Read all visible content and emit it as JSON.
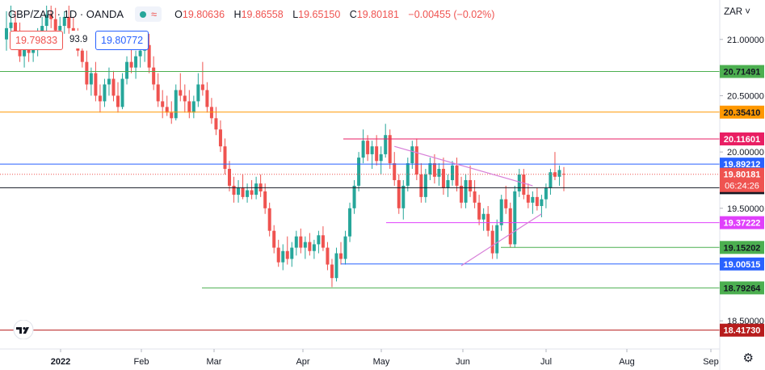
{
  "header": {
    "symbol": "GBP/ZAR · 1D · OANDA",
    "open_label": "O",
    "open": "19.80636",
    "high_label": "H",
    "high": "19.86558",
    "low_label": "L",
    "low": "19.65150",
    "close_label": "C",
    "close": "19.80181",
    "change": "−0.00455 (−0.02%)"
  },
  "trade": {
    "sell": "19.79833",
    "spread": "93.9",
    "buy": "19.80772"
  },
  "currency": "ZAR",
  "colors": {
    "up": "#26a69a",
    "down": "#ef5350"
  },
  "icons": {
    "settings": "gear-icon",
    "logo": "tradingview-logo-icon",
    "menu": "chevron-down-icon"
  },
  "chart_data": {
    "type": "candlestick",
    "title": "",
    "xlabel": "",
    "ylabel": "",
    "ylim": [
      18.25,
      21.35
    ],
    "x_ticks": [
      "2022",
      "Feb",
      "Mar",
      "Apr",
      "May",
      "Jun",
      "Jul",
      "Aug",
      "Sep"
    ],
    "y_ticks": [
      "21.00000",
      "20.50000",
      "20.00000",
      "19.50000",
      "18.50000"
    ],
    "grid": false,
    "levels": [
      {
        "value": 20.71491,
        "label": "20.71491",
        "color": "#4caf50"
      },
      {
        "value": 20.3541,
        "label": "20.35410",
        "color": "#ff9800"
      },
      {
        "value": 20.11601,
        "label": "20.11601",
        "color": "#e91e63"
      },
      {
        "value": 19.89212,
        "label": "19.89212",
        "color": "#2962ff"
      },
      {
        "value": 19.68257,
        "label": "19.68257",
        "color": "#131722"
      },
      {
        "value": 19.37222,
        "label": "19.37222",
        "color": "#e040fb"
      },
      {
        "value": 19.15202,
        "label": "19.15202",
        "color": "#4caf50"
      },
      {
        "value": 19.00515,
        "label": "19.00515",
        "color": "#2962ff"
      },
      {
        "value": 18.79264,
        "label": "18.79264",
        "color": "#4caf50"
      },
      {
        "value": 18.4173,
        "label": "18.41730",
        "color": "#b71c1c"
      }
    ],
    "current_price": {
      "value": 19.80181,
      "label": "19.80181",
      "countdown": "06:24:26"
    },
    "candles": [
      {
        "o": 21.0,
        "h": 21.25,
        "l": 20.9,
        "c": 21.1
      },
      {
        "o": 21.1,
        "h": 21.3,
        "l": 21.0,
        "c": 21.15
      },
      {
        "o": 21.15,
        "h": 21.25,
        "l": 20.95,
        "c": 21.05
      },
      {
        "o": 21.05,
        "h": 21.15,
        "l": 20.8,
        "c": 20.85
      },
      {
        "o": 20.85,
        "h": 21.0,
        "l": 20.75,
        "c": 20.95
      },
      {
        "o": 20.95,
        "h": 21.05,
        "l": 20.8,
        "c": 20.88
      },
      {
        "o": 20.88,
        "h": 21.0,
        "l": 20.8,
        "c": 20.92
      },
      {
        "o": 20.92,
        "h": 21.1,
        "l": 20.85,
        "c": 21.02
      },
      {
        "o": 21.02,
        "h": 21.2,
        "l": 20.95,
        "c": 21.12
      },
      {
        "o": 21.12,
        "h": 21.3,
        "l": 21.05,
        "c": 21.22
      },
      {
        "o": 21.22,
        "h": 21.3,
        "l": 21.1,
        "c": 21.18
      },
      {
        "o": 21.18,
        "h": 21.28,
        "l": 21.05,
        "c": 21.08
      },
      {
        "o": 21.08,
        "h": 21.2,
        "l": 21.0,
        "c": 21.12
      },
      {
        "o": 21.12,
        "h": 21.25,
        "l": 21.05,
        "c": 21.2
      },
      {
        "o": 21.2,
        "h": 21.3,
        "l": 21.05,
        "c": 21.1
      },
      {
        "o": 21.1,
        "h": 21.2,
        "l": 20.95,
        "c": 21.0
      },
      {
        "o": 21.0,
        "h": 21.1,
        "l": 20.85,
        "c": 20.9
      },
      {
        "o": 20.9,
        "h": 21.0,
        "l": 20.75,
        "c": 20.8
      },
      {
        "o": 20.8,
        "h": 20.9,
        "l": 20.55,
        "c": 20.6
      },
      {
        "o": 20.6,
        "h": 20.75,
        "l": 20.5,
        "c": 20.7
      },
      {
        "o": 20.7,
        "h": 20.8,
        "l": 20.45,
        "c": 20.5
      },
      {
        "o": 20.5,
        "h": 20.6,
        "l": 20.35,
        "c": 20.45
      },
      {
        "o": 20.45,
        "h": 20.65,
        "l": 20.4,
        "c": 20.6
      },
      {
        "o": 20.6,
        "h": 20.75,
        "l": 20.5,
        "c": 20.65
      },
      {
        "o": 20.65,
        "h": 20.72,
        "l": 20.45,
        "c": 20.5
      },
      {
        "o": 20.5,
        "h": 20.62,
        "l": 20.35,
        "c": 20.4
      },
      {
        "o": 20.4,
        "h": 20.7,
        "l": 20.38,
        "c": 20.65
      },
      {
        "o": 20.65,
        "h": 20.85,
        "l": 20.6,
        "c": 20.8
      },
      {
        "o": 20.8,
        "h": 20.95,
        "l": 20.7,
        "c": 20.75
      },
      {
        "o": 20.75,
        "h": 20.9,
        "l": 20.65,
        "c": 20.85
      },
      {
        "o": 20.85,
        "h": 21.0,
        "l": 20.75,
        "c": 20.9
      },
      {
        "o": 20.9,
        "h": 21.05,
        "l": 20.8,
        "c": 20.95
      },
      {
        "o": 20.95,
        "h": 21.05,
        "l": 20.7,
        "c": 20.75
      },
      {
        "o": 20.75,
        "h": 20.85,
        "l": 20.55,
        "c": 20.6
      },
      {
        "o": 20.6,
        "h": 20.7,
        "l": 20.4,
        "c": 20.45
      },
      {
        "o": 20.45,
        "h": 20.55,
        "l": 20.3,
        "c": 20.4
      },
      {
        "o": 20.4,
        "h": 20.5,
        "l": 20.32,
        "c": 20.35
      },
      {
        "o": 20.35,
        "h": 20.45,
        "l": 20.25,
        "c": 20.3
      },
      {
        "o": 20.3,
        "h": 20.6,
        "l": 20.28,
        "c": 20.55
      },
      {
        "o": 20.55,
        "h": 20.7,
        "l": 20.45,
        "c": 20.5
      },
      {
        "o": 20.5,
        "h": 20.6,
        "l": 20.35,
        "c": 20.45
      },
      {
        "o": 20.45,
        "h": 20.55,
        "l": 20.3,
        "c": 20.35
      },
      {
        "o": 20.35,
        "h": 20.5,
        "l": 20.3,
        "c": 20.45
      },
      {
        "o": 20.45,
        "h": 20.7,
        "l": 20.4,
        "c": 20.6
      },
      {
        "o": 20.6,
        "h": 20.8,
        "l": 20.5,
        "c": 20.55
      },
      {
        "o": 20.55,
        "h": 20.62,
        "l": 20.35,
        "c": 20.4
      },
      {
        "o": 20.4,
        "h": 20.48,
        "l": 20.25,
        "c": 20.3
      },
      {
        "o": 20.3,
        "h": 20.4,
        "l": 20.15,
        "c": 20.2
      },
      {
        "o": 20.2,
        "h": 20.28,
        "l": 20.0,
        "c": 20.05
      },
      {
        "o": 20.05,
        "h": 20.12,
        "l": 19.8,
        "c": 19.85
      },
      {
        "o": 19.85,
        "h": 19.92,
        "l": 19.65,
        "c": 19.7
      },
      {
        "o": 19.7,
        "h": 19.78,
        "l": 19.55,
        "c": 19.62
      },
      {
        "o": 19.62,
        "h": 19.75,
        "l": 19.55,
        "c": 19.68
      },
      {
        "o": 19.68,
        "h": 19.8,
        "l": 19.58,
        "c": 19.6
      },
      {
        "o": 19.6,
        "h": 19.72,
        "l": 19.55,
        "c": 19.66
      },
      {
        "o": 19.66,
        "h": 19.75,
        "l": 19.58,
        "c": 19.62
      },
      {
        "o": 19.62,
        "h": 19.78,
        "l": 19.58,
        "c": 19.72
      },
      {
        "o": 19.72,
        "h": 19.8,
        "l": 19.6,
        "c": 19.65
      },
      {
        "o": 19.65,
        "h": 19.72,
        "l": 19.45,
        "c": 19.5
      },
      {
        "o": 19.5,
        "h": 19.55,
        "l": 19.25,
        "c": 19.3
      },
      {
        "o": 19.3,
        "h": 19.35,
        "l": 19.1,
        "c": 19.15
      },
      {
        "o": 19.15,
        "h": 19.22,
        "l": 18.98,
        "c": 19.02
      },
      {
        "o": 19.02,
        "h": 19.18,
        "l": 18.95,
        "c": 19.12
      },
      {
        "o": 19.12,
        "h": 19.25,
        "l": 19.0,
        "c": 19.05
      },
      {
        "o": 19.05,
        "h": 19.2,
        "l": 18.98,
        "c": 19.15
      },
      {
        "o": 19.15,
        "h": 19.3,
        "l": 19.08,
        "c": 19.25
      },
      {
        "o": 19.25,
        "h": 19.32,
        "l": 19.1,
        "c": 19.15
      },
      {
        "o": 19.15,
        "h": 19.25,
        "l": 19.05,
        "c": 19.2
      },
      {
        "o": 19.2,
        "h": 19.28,
        "l": 19.08,
        "c": 19.12
      },
      {
        "o": 19.12,
        "h": 19.22,
        "l": 19.05,
        "c": 19.18
      },
      {
        "o": 19.18,
        "h": 19.3,
        "l": 19.1,
        "c": 19.26
      },
      {
        "o": 19.26,
        "h": 19.34,
        "l": 19.12,
        "c": 19.15
      },
      {
        "o": 19.15,
        "h": 19.2,
        "l": 18.95,
        "c": 19.0
      },
      {
        "o": 19.0,
        "h": 19.05,
        "l": 18.8,
        "c": 18.88
      },
      {
        "o": 18.88,
        "h": 19.15,
        "l": 18.85,
        "c": 19.1
      },
      {
        "o": 19.1,
        "h": 19.2,
        "l": 19.0,
        "c": 19.05
      },
      {
        "o": 19.05,
        "h": 19.3,
        "l": 19.0,
        "c": 19.25
      },
      {
        "o": 19.25,
        "h": 19.55,
        "l": 19.2,
        "c": 19.5
      },
      {
        "o": 19.5,
        "h": 19.75,
        "l": 19.45,
        "c": 19.7
      },
      {
        "o": 19.7,
        "h": 20.0,
        "l": 19.65,
        "c": 19.95
      },
      {
        "o": 19.95,
        "h": 20.2,
        "l": 19.9,
        "c": 20.1
      },
      {
        "o": 20.1,
        "h": 20.15,
        "l": 19.92,
        "c": 19.98
      },
      {
        "o": 19.98,
        "h": 20.1,
        "l": 19.85,
        "c": 20.05
      },
      {
        "o": 20.05,
        "h": 20.15,
        "l": 19.88,
        "c": 19.92
      },
      {
        "o": 19.92,
        "h": 20.05,
        "l": 19.8,
        "c": 19.98
      },
      {
        "o": 19.98,
        "h": 20.25,
        "l": 19.95,
        "c": 20.15
      },
      {
        "o": 20.15,
        "h": 20.2,
        "l": 19.85,
        "c": 19.9
      },
      {
        "o": 19.9,
        "h": 20.0,
        "l": 19.7,
        "c": 19.75
      },
      {
        "o": 19.75,
        "h": 19.8,
        "l": 19.45,
        "c": 19.5
      },
      {
        "o": 19.5,
        "h": 19.75,
        "l": 19.4,
        "c": 19.7
      },
      {
        "o": 19.7,
        "h": 19.95,
        "l": 19.65,
        "c": 19.9
      },
      {
        "o": 19.9,
        "h": 20.1,
        "l": 19.85,
        "c": 20.05
      },
      {
        "o": 20.05,
        "h": 20.12,
        "l": 19.75,
        "c": 19.8
      },
      {
        "o": 19.8,
        "h": 19.9,
        "l": 19.55,
        "c": 19.6
      },
      {
        "o": 19.6,
        "h": 19.85,
        "l": 19.55,
        "c": 19.8
      },
      {
        "o": 19.8,
        "h": 19.95,
        "l": 19.75,
        "c": 19.9
      },
      {
        "o": 19.9,
        "h": 19.98,
        "l": 19.72,
        "c": 19.78
      },
      {
        "o": 19.78,
        "h": 19.9,
        "l": 19.7,
        "c": 19.85
      },
      {
        "o": 19.85,
        "h": 19.95,
        "l": 19.62,
        "c": 19.68
      },
      {
        "o": 19.68,
        "h": 19.8,
        "l": 19.6,
        "c": 19.75
      },
      {
        "o": 19.75,
        "h": 19.92,
        "l": 19.7,
        "c": 19.88
      },
      {
        "o": 19.88,
        "h": 19.95,
        "l": 19.65,
        "c": 19.7
      },
      {
        "o": 19.7,
        "h": 19.78,
        "l": 19.5,
        "c": 19.55
      },
      {
        "o": 19.55,
        "h": 19.8,
        "l": 19.5,
        "c": 19.75
      },
      {
        "o": 19.75,
        "h": 19.88,
        "l": 19.6,
        "c": 19.65
      },
      {
        "o": 19.65,
        "h": 19.75,
        "l": 19.5,
        "c": 19.55
      },
      {
        "o": 19.55,
        "h": 19.62,
        "l": 19.35,
        "c": 19.4
      },
      {
        "o": 19.4,
        "h": 19.5,
        "l": 19.3,
        "c": 19.45
      },
      {
        "o": 19.45,
        "h": 19.52,
        "l": 19.25,
        "c": 19.3
      },
      {
        "o": 19.3,
        "h": 19.35,
        "l": 19.05,
        "c": 19.1
      },
      {
        "o": 19.1,
        "h": 19.4,
        "l": 19.05,
        "c": 19.35
      },
      {
        "o": 19.35,
        "h": 19.62,
        "l": 19.3,
        "c": 19.58
      },
      {
        "o": 19.58,
        "h": 19.7,
        "l": 19.45,
        "c": 19.5
      },
      {
        "o": 19.5,
        "h": 19.55,
        "l": 19.15,
        "c": 19.18
      },
      {
        "o": 19.18,
        "h": 19.7,
        "l": 19.15,
        "c": 19.65
      },
      {
        "o": 19.65,
        "h": 19.85,
        "l": 19.6,
        "c": 19.8
      },
      {
        "o": 19.8,
        "h": 19.85,
        "l": 19.58,
        "c": 19.62
      },
      {
        "o": 19.62,
        "h": 19.72,
        "l": 19.5,
        "c": 19.55
      },
      {
        "o": 19.55,
        "h": 19.65,
        "l": 19.45,
        "c": 19.6
      },
      {
        "o": 19.6,
        "h": 19.68,
        "l": 19.48,
        "c": 19.52
      },
      {
        "o": 19.52,
        "h": 19.62,
        "l": 19.42,
        "c": 19.58
      },
      {
        "o": 19.58,
        "h": 19.72,
        "l": 19.5,
        "c": 19.68
      },
      {
        "o": 19.68,
        "h": 19.85,
        "l": 19.62,
        "c": 19.82
      },
      {
        "o": 19.82,
        "h": 20.0,
        "l": 19.75,
        "c": 19.78
      },
      {
        "o": 19.78,
        "h": 19.88,
        "l": 19.7,
        "c": 19.84
      },
      {
        "o": 19.806,
        "h": 19.866,
        "l": 19.652,
        "c": 19.802
      }
    ],
    "pennant": {
      "upper": [
        [
          87,
          20.05
        ],
        [
          118,
          19.7
        ]
      ],
      "lower": [
        [
          102,
          18.99
        ],
        [
          120,
          19.45
        ]
      ]
    }
  }
}
